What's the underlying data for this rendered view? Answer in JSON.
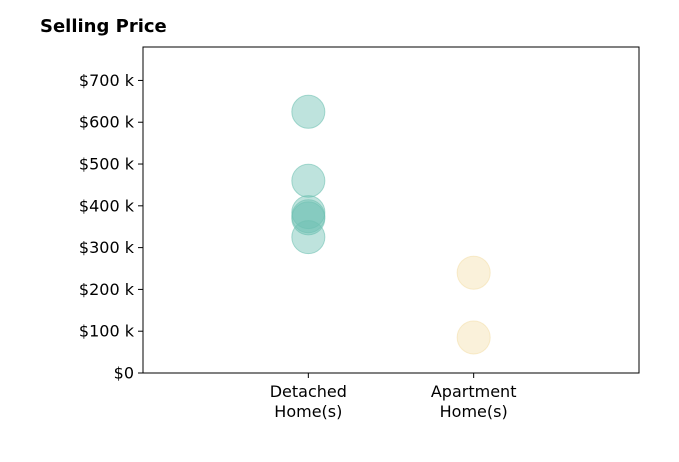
{
  "chart_data": {
    "type": "scatter",
    "title": "Selling Price",
    "xlabel": "",
    "ylabel": "",
    "categories": [
      "Detached\nHome(s)",
      "Apartment\nHome(s)"
    ],
    "xlim": [
      -1,
      2
    ],
    "ylim": [
      0,
      780
    ],
    "yticks": [
      0,
      100,
      200,
      300,
      400,
      500,
      600,
      700
    ],
    "ytick_labels": [
      "$0",
      "$100 k",
      "$200 k",
      "$300 k",
      "$400 k",
      "$500 k",
      "$600 k",
      "$700 k"
    ],
    "grid": false,
    "legend": "none",
    "series": [
      {
        "color": "#6fc1b3",
        "category": 0,
        "values": [
          625,
          460,
          385,
          375,
          370,
          325
        ]
      },
      {
        "color": "#f4dfac",
        "category": 1,
        "values": [
          240,
          85
        ]
      }
    ]
  }
}
